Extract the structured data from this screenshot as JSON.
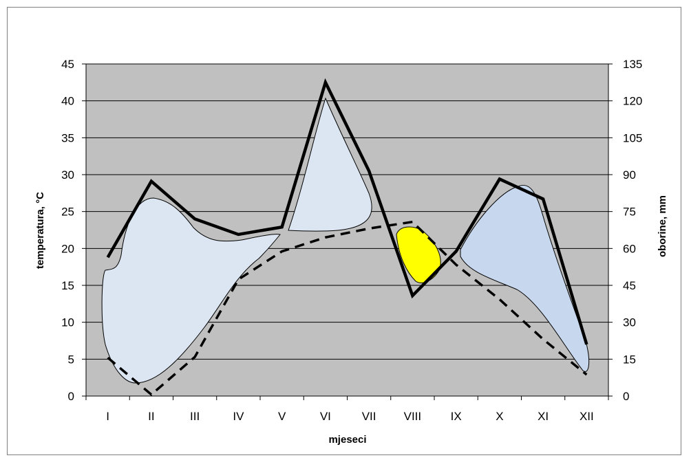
{
  "chart_data": {
    "type": "line",
    "title": "",
    "xlabel": "mjeseci",
    "ylabel": "temperatura, °C",
    "ylabel_right": "oborine, mm",
    "categories": [
      "I",
      "II",
      "III",
      "IV",
      "V",
      "VI",
      "VII",
      "VIII",
      "IX",
      "X",
      "XI",
      "XII"
    ],
    "ylim": [
      0,
      45
    ],
    "y2lim": [
      0,
      135
    ],
    "yticks": [
      "0",
      "5",
      "10",
      "15",
      "20",
      "25",
      "30",
      "35",
      "40",
      "45"
    ],
    "y2ticks": [
      "0",
      "15",
      "30",
      "45",
      "60",
      "75",
      "90",
      "105",
      "120",
      "135"
    ],
    "grid": true,
    "legend": "none",
    "series": [
      {
        "axis": "left",
        "style": "solid",
        "values": [
          18.8,
          29.1,
          24.0,
          21.9,
          22.9,
          42.5,
          30.5,
          13.6,
          19.6,
          29.4,
          26.7,
          7.0
        ]
      },
      {
        "axis": "left",
        "style": "dashed",
        "values": [
          5.2,
          0.2,
          5.3,
          15.8,
          19.6,
          21.5,
          22.7,
          23.6,
          17.8,
          13.1,
          7.7,
          2.9
        ]
      }
    ],
    "colors": {
      "plot_bg": "#c0c0c0",
      "line": "#000000",
      "humid_fill": "#dce6f2",
      "humid_fill_alt": "#c6d7ee",
      "dry_fill": "#ffff00"
    }
  }
}
